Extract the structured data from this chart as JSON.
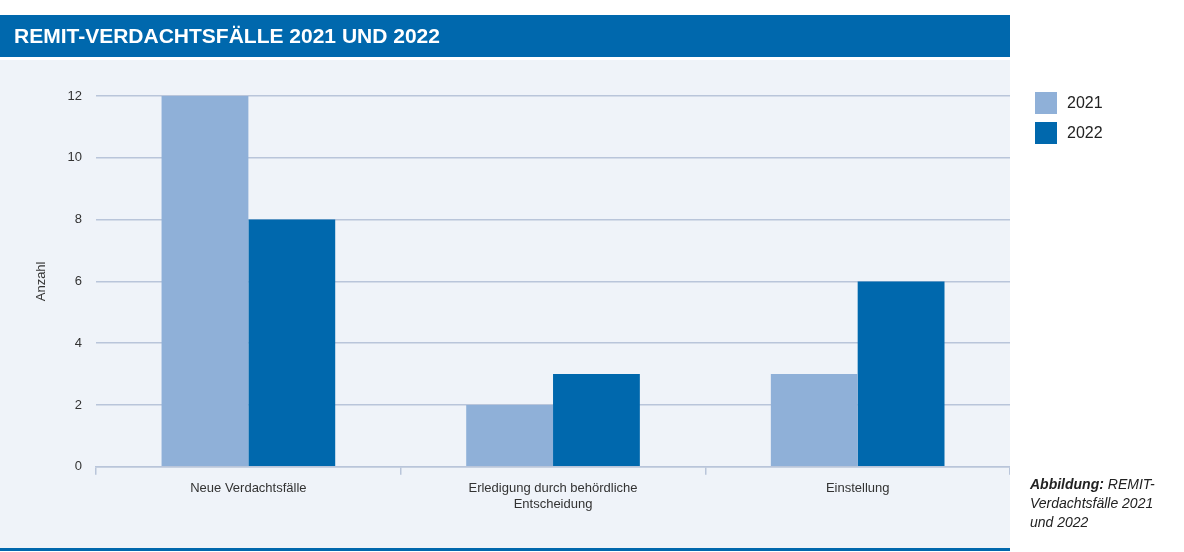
{
  "chart_data": {
    "type": "bar",
    "title": "REMIT-VERDACHTSFÄLLE 2021 UND 2022",
    "ylabel": "Anzahl",
    "categories": [
      "Neue Verdachtsfälle",
      "Erledigung durch behördliche Entscheidung",
      "Einstellung"
    ],
    "series": [
      {
        "name": "2021",
        "color": "#8fb0d8",
        "values": [
          12,
          2,
          3
        ]
      },
      {
        "name": "2022",
        "color": "#0068ad",
        "values": [
          8,
          3,
          6
        ]
      }
    ],
    "ylim": [
      0,
      12
    ],
    "yticks": [
      0,
      2,
      4,
      6,
      8,
      10,
      12
    ],
    "grid": "y",
    "legend": "top right",
    "annotations": [
      "Abbildung: REMIT-Verdachtsfälle 2021 und 2022"
    ]
  }
}
